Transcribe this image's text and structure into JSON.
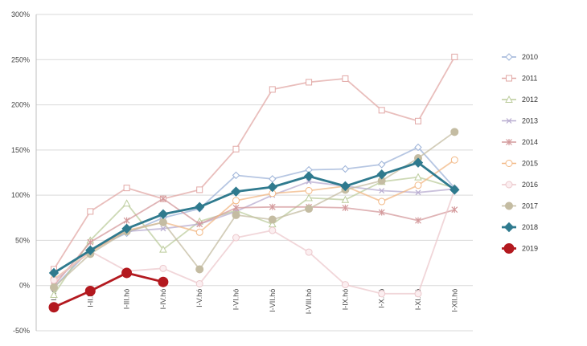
{
  "chart_data": {
    "type": "line",
    "title": "",
    "xlabel": "",
    "ylabel": "",
    "categories": [
      "I.hó",
      "I-II.hó",
      "I-III.hó",
      "I-IV.hó",
      "I-V.hó",
      "I-VI.hó",
      "I-VII.hó",
      "I-VIII.hó",
      "I-IX.hó",
      "I-X.hó",
      "I-XI.hó",
      "I-XII.hó"
    ],
    "ylim": [
      -50,
      300
    ],
    "yticks": [
      -50,
      0,
      50,
      100,
      150,
      200,
      250,
      300
    ],
    "ytick_labels": [
      "-50%",
      "0%",
      "50%",
      "100%",
      "150%",
      "200%",
      "250%",
      "300%"
    ],
    "grid": "horizontal",
    "legend_position": "right",
    "series": [
      {
        "name": "2010",
        "color": "#9db3d8",
        "marker": "diamond-open",
        "emphasis": false,
        "values": [
          -2,
          40,
          58,
          75,
          85,
          122,
          118,
          128,
          129,
          134,
          153,
          108
        ]
      },
      {
        "name": "2011",
        "color": "#e2a8a6",
        "marker": "square-open",
        "emphasis": false,
        "values": [
          18,
          82,
          108,
          96,
          106,
          151,
          217,
          225,
          229,
          194,
          182,
          253
        ]
      },
      {
        "name": "2012",
        "color": "#bccc9c",
        "marker": "triangle-open",
        "emphasis": false,
        "values": [
          -10,
          50,
          91,
          40,
          71,
          83,
          68,
          97,
          95,
          115,
          120,
          108
        ]
      },
      {
        "name": "2013",
        "color": "#b8acd0",
        "marker": "x",
        "emphasis": false,
        "values": [
          5,
          38,
          60,
          63,
          68,
          82,
          100,
          115,
          110,
          105,
          103,
          107
        ]
      },
      {
        "name": "2014",
        "color": "#d49a9c",
        "marker": "star",
        "emphasis": false,
        "values": [
          0,
          48,
          72,
          96,
          68,
          86,
          87,
          87,
          86,
          81,
          72,
          84
        ]
      },
      {
        "name": "2015",
        "color": "#f2b885",
        "marker": "circle-open",
        "emphasis": false,
        "values": [
          7,
          37,
          61,
          70,
          59,
          94,
          102,
          105,
          110,
          93,
          111,
          139
        ]
      },
      {
        "name": "2016",
        "color": "#ecc8cc",
        "marker": "circle-light",
        "emphasis": false,
        "values": [
          6,
          38,
          16,
          19,
          2,
          53,
          61,
          37,
          1,
          -9,
          -9,
          106
        ]
      },
      {
        "name": "2017",
        "color": "#c4bca2",
        "marker": "circle-filled",
        "emphasis": false,
        "values": [
          -2,
          35,
          60,
          70,
          18,
          78,
          73,
          85,
          106,
          116,
          141,
          170
        ]
      },
      {
        "name": "2018",
        "color": "#2f7a8e",
        "marker": "diamond-filled",
        "emphasis": true,
        "values": [
          14,
          39,
          63,
          79,
          87,
          104,
          109,
          121,
          110,
          123,
          136,
          106
        ]
      },
      {
        "name": "2019",
        "color": "#b3191f",
        "marker": "circle-big",
        "emphasis": true,
        "values": [
          -24,
          -6,
          14,
          4,
          null,
          null,
          null,
          null,
          null,
          null,
          null,
          null
        ]
      }
    ]
  }
}
